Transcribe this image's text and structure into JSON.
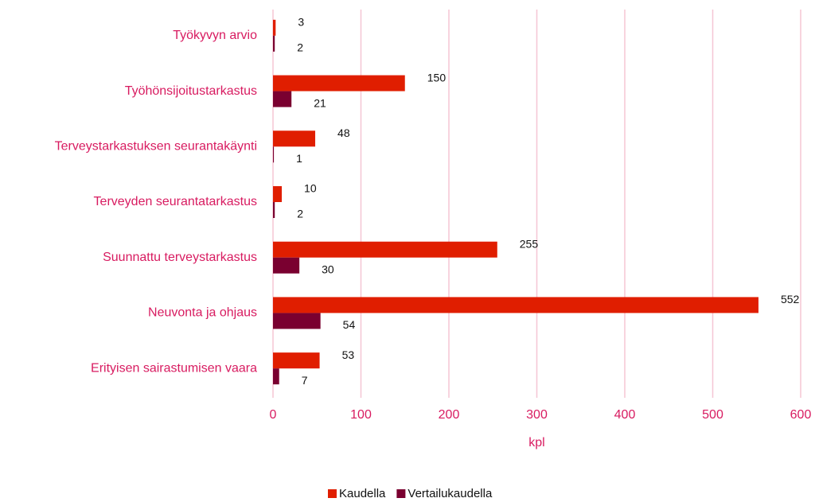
{
  "chart_data": {
    "type": "bar",
    "orientation": "horizontal",
    "categories": [
      "Työkyvyn arvio",
      "Työhönsijoitustarkastus",
      "Terveystarkastuksen seurantakäynti",
      "Terveyden seurantatarkastus",
      "Suunnattu terveystarkastus",
      "Neuvonta ja ohjaus",
      "Erityisen sairastumisen vaara"
    ],
    "series": [
      {
        "name": "Kaudella",
        "color": "#e01e00",
        "values": [
          3,
          150,
          48,
          10,
          255,
          552,
          53
        ]
      },
      {
        "name": "Vertailukaudella",
        "color": "#7a0030",
        "values": [
          2,
          21,
          1,
          2,
          30,
          54,
          7
        ]
      }
    ],
    "xlabel": "kpl",
    "xlim": [
      0,
      600
    ],
    "xticks": [
      0,
      100,
      200,
      300,
      400,
      500,
      600
    ],
    "grid": true,
    "legend": "bottom"
  }
}
